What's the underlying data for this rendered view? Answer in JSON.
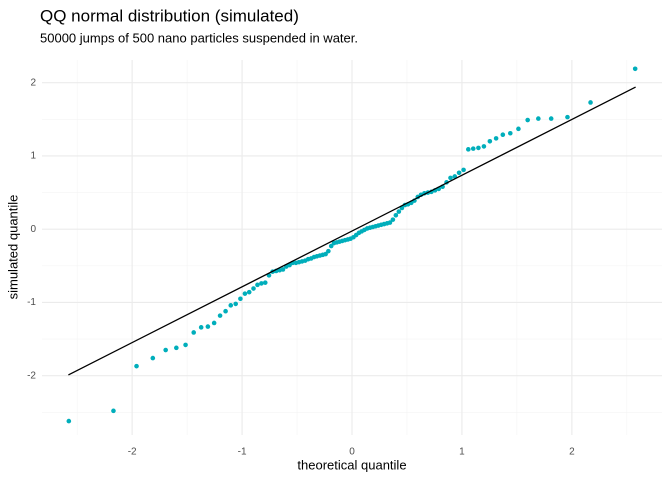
{
  "chart_data": {
    "type": "scatter",
    "title": "QQ normal distribution (simulated)",
    "subtitle": "50000 jumps of 500 nano particles suspended in water.",
    "xlabel": "theoretical quantile",
    "ylabel": "simulated quantile",
    "color": "#00aebb",
    "grid": true,
    "xlim": [
      -2.82,
      2.82
    ],
    "ylim": [
      -2.81,
      2.31
    ],
    "xticks": [
      -2,
      -1,
      0,
      1,
      2
    ],
    "yticks": [
      -2,
      -1,
      0,
      1,
      2
    ],
    "xminor": [
      -2.5,
      -1.5,
      -0.5,
      0.5,
      1.5,
      2.5
    ],
    "yminor": [
      -2.5,
      -1.5,
      -0.5,
      0.5,
      1.5
    ],
    "reference_line": {
      "color": "#000000",
      "x": [
        -2.58,
        2.58
      ],
      "y": [
        -1.99,
        1.94
      ]
    },
    "x": [
      -2.576,
      -2.17,
      -1.96,
      -1.812,
      -1.695,
      -1.598,
      -1.514,
      -1.44,
      -1.372,
      -1.311,
      -1.254,
      -1.2,
      -1.15,
      -1.103,
      -1.058,
      -1.015,
      -0.974,
      -0.935,
      -0.896,
      -0.86,
      -0.824,
      -0.789,
      -0.755,
      -0.722,
      -0.69,
      -0.659,
      -0.628,
      -0.598,
      -0.568,
      -0.539,
      -0.51,
      -0.482,
      -0.454,
      -0.426,
      -0.399,
      -0.372,
      -0.345,
      -0.319,
      -0.292,
      -0.266,
      -0.24,
      -0.215,
      -0.189,
      -0.164,
      -0.138,
      -0.113,
      -0.088,
      -0.063,
      -0.038,
      -0.013,
      0.013,
      0.038,
      0.063,
      0.088,
      0.113,
      0.138,
      0.164,
      0.189,
      0.215,
      0.24,
      0.266,
      0.292,
      0.319,
      0.345,
      0.372,
      0.399,
      0.426,
      0.454,
      0.482,
      0.51,
      0.539,
      0.568,
      0.598,
      0.628,
      0.659,
      0.69,
      0.722,
      0.755,
      0.789,
      0.824,
      0.86,
      0.896,
      0.935,
      0.974,
      1.015,
      1.058,
      1.103,
      1.15,
      1.2,
      1.254,
      1.311,
      1.372,
      1.44,
      1.514,
      1.598,
      1.695,
      1.812,
      1.96,
      2.17,
      2.576
    ],
    "values": [
      -2.62,
      -2.48,
      -1.87,
      -1.76,
      -1.65,
      -1.62,
      -1.58,
      -1.41,
      -1.34,
      -1.33,
      -1.28,
      -1.18,
      -1.12,
      -1.04,
      -1.02,
      -0.95,
      -0.88,
      -0.86,
      -0.81,
      -0.76,
      -0.74,
      -0.73,
      -0.63,
      -0.58,
      -0.57,
      -0.56,
      -0.55,
      -0.51,
      -0.49,
      -0.46,
      -0.46,
      -0.45,
      -0.44,
      -0.43,
      -0.41,
      -0.4,
      -0.38,
      -0.37,
      -0.36,
      -0.35,
      -0.34,
      -0.3,
      -0.23,
      -0.19,
      -0.18,
      -0.17,
      -0.16,
      -0.15,
      -0.14,
      -0.13,
      -0.11,
      -0.08,
      -0.05,
      -0.03,
      -0.01,
      0.01,
      0.02,
      0.03,
      0.04,
      0.05,
      0.06,
      0.07,
      0.08,
      0.09,
      0.13,
      0.19,
      0.24,
      0.29,
      0.33,
      0.34,
      0.36,
      0.39,
      0.44,
      0.47,
      0.49,
      0.5,
      0.51,
      0.53,
      0.55,
      0.58,
      0.64,
      0.7,
      0.72,
      0.77,
      0.81,
      1.09,
      1.1,
      1.11,
      1.13,
      1.2,
      1.24,
      1.29,
      1.31,
      1.37,
      1.49,
      1.51,
      1.51,
      1.53,
      1.73,
      2.19
    ]
  }
}
